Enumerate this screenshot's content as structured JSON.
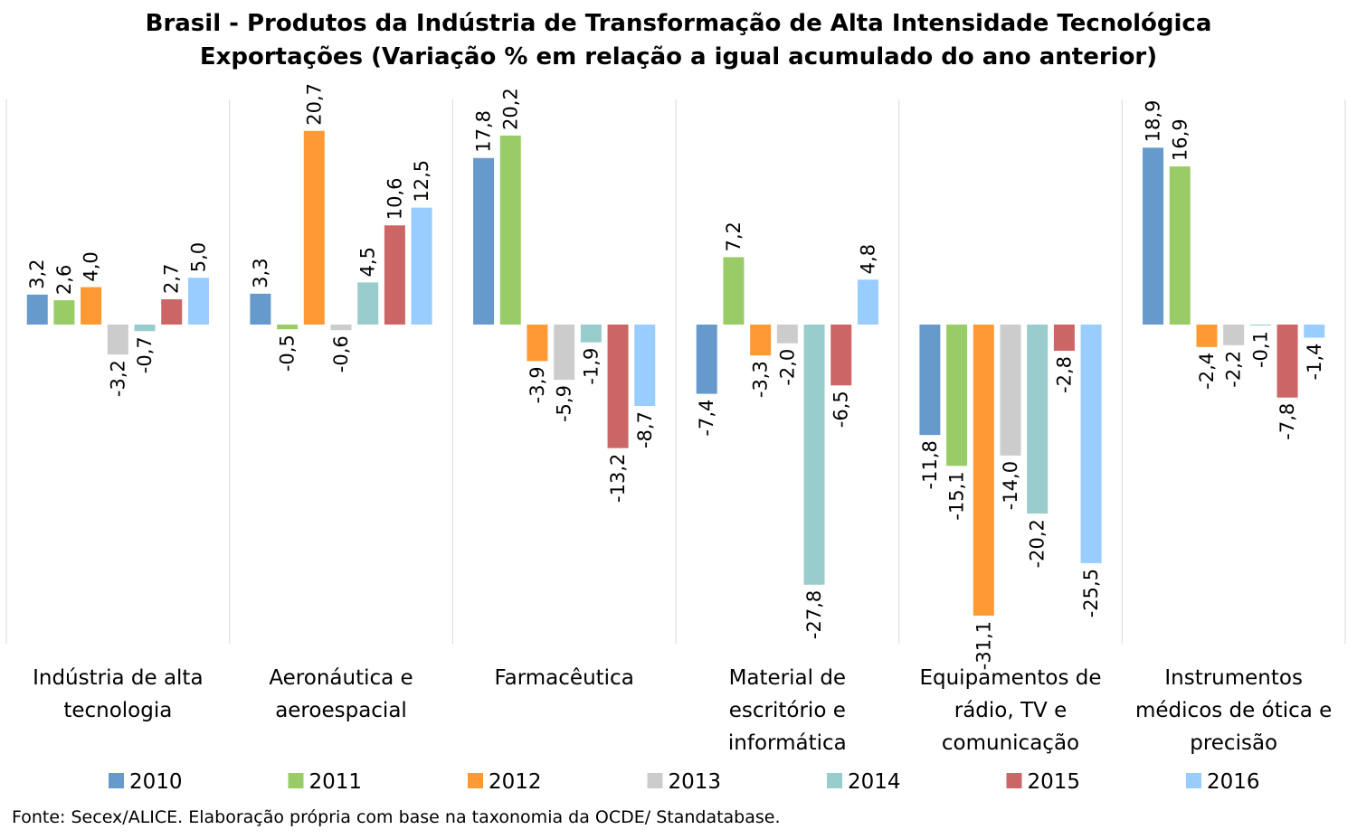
{
  "chart_data": {
    "type": "bar",
    "title": "Brasil - Produtos da Indústria de Transformação de Alta Intensidade Tecnológica",
    "subtitle": "Exportações (Variação % em relação a igual acumulado do ano anterior)",
    "categories": [
      [
        "Indústria de alta",
        "tecnologia"
      ],
      [
        "Aeronáutica e",
        "aeroespacial"
      ],
      [
        "Farmacêutica"
      ],
      [
        "Material de",
        "escritório e",
        "informática"
      ],
      [
        "Equipamentos de",
        "rádio, TV e",
        "comunicação"
      ],
      [
        "Instrumentos",
        "médicos de ótica e",
        "precisão"
      ]
    ],
    "series": [
      {
        "name": "2010",
        "color": "#6699CC",
        "values": [
          3.2,
          3.3,
          17.8,
          -7.4,
          -11.8,
          18.9
        ]
      },
      {
        "name": "2011",
        "color": "#99CC66",
        "values": [
          2.6,
          -0.5,
          20.2,
          7.2,
          -15.1,
          16.9
        ]
      },
      {
        "name": "2012",
        "color": "#FF9933",
        "values": [
          4.0,
          20.7,
          -3.9,
          -3.3,
          -31.1,
          -2.4
        ]
      },
      {
        "name": "2013",
        "color": "#CCCCCC",
        "values": [
          -3.2,
          -0.6,
          -5.9,
          -2.0,
          -14.0,
          -2.2
        ]
      },
      {
        "name": "2014",
        "color": "#99CCCC",
        "values": [
          -0.7,
          4.5,
          -1.9,
          -27.8,
          -20.2,
          -0.1
        ]
      },
      {
        "name": "2015",
        "color": "#CC6666",
        "values": [
          2.7,
          10.6,
          -13.2,
          -6.5,
          -2.8,
          -7.8
        ]
      },
      {
        "name": "2016",
        "color": "#99CCFF",
        "values": [
          5.0,
          12.5,
          -8.7,
          4.8,
          -25.5,
          -1.4
        ]
      }
    ],
    "value_labels": [
      [
        "3,2",
        "3,3",
        "17,8",
        "-7,4",
        "-11,8",
        "18,9"
      ],
      [
        "2,6",
        "-0,5",
        "20,2",
        "7,2",
        "-15,1",
        "16,9"
      ],
      [
        "4,0",
        "20,7",
        "-3,9",
        "-3,3",
        "-31,1",
        "-2,4"
      ],
      [
        "-3,2",
        "-0,6",
        "-5,9",
        "-2,0",
        "-14,0",
        "-2,2"
      ],
      [
        "-0,7",
        "4,5",
        "-1,9",
        "-27,8",
        "-20,2",
        "-0,1"
      ],
      [
        "2,7",
        "10,6",
        "-13,2",
        "-6,5",
        "-2,8",
        "-7,8"
      ],
      [
        "5,0",
        "12,5",
        "-8,7",
        "4,8",
        "-25,5",
        "-1,4"
      ]
    ],
    "legend_position": "bottom",
    "grid": false,
    "xlabel": "",
    "ylabel": ""
  },
  "source": "Fonte: Secex/ALICE. Elaboração própria com base na taxonomia da OCDE/ Standatabase."
}
